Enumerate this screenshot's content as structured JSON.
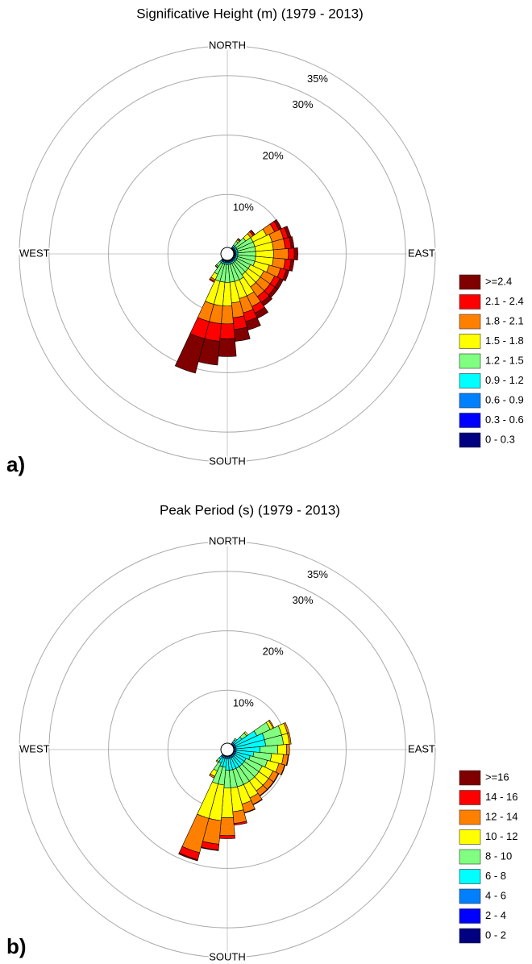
{
  "chart_data": [
    {
      "type": "rose",
      "title": "Significative Height  (m) (1979 - 2013)",
      "panel_label": "a)",
      "compass_labels": [
        "NORTH",
        "EAST",
        "SOUTH",
        "WEST"
      ],
      "directions": [
        40,
        50,
        60,
        70,
        80,
        90,
        100,
        110,
        120,
        130,
        140,
        150,
        160,
        170,
        180,
        190,
        200,
        210,
        220
      ],
      "rlim": [
        0,
        35
      ],
      "rticks": [
        {
          "value": 10,
          "label": "10%"
        },
        {
          "value": 20,
          "label": "20%"
        },
        {
          "value": 30,
          "label": "30%"
        },
        {
          "value": 35,
          "label": "35%"
        }
      ],
      "series": [
        {
          "name": "0 - 0.3",
          "color": "#000080",
          "values": [
            0.1,
            0.1,
            0.1,
            0.1,
            0.1,
            0.1,
            0.1,
            0.1,
            0.1,
            0.1,
            0.1,
            0.1,
            0.1,
            0.1,
            0.1,
            0.1,
            0.1,
            0.1,
            0.1
          ]
        },
        {
          "name": "0.3 - 0.6",
          "color": "#0000ff",
          "values": [
            0.1,
            0.1,
            0.1,
            0.1,
            0.1,
            0.1,
            0.1,
            0.1,
            0.1,
            0.1,
            0.1,
            0.1,
            0.1,
            0.1,
            0.1,
            0.1,
            0.1,
            0.1,
            0.1
          ]
        },
        {
          "name": "0.6 - 0.9",
          "color": "#0080ff",
          "values": [
            0.2,
            0.2,
            0.2,
            0.2,
            0.2,
            0.2,
            0.2,
            0.2,
            0.2,
            0.2,
            0.2,
            0.2,
            0.2,
            0.2,
            0.2,
            0.2,
            0.2,
            0.2,
            0.2
          ]
        },
        {
          "name": "0.9 - 1.2",
          "color": "#00ffff",
          "values": [
            0.3,
            0.3,
            0.3,
            0.3,
            0.3,
            0.3,
            0.3,
            0.3,
            0.3,
            0.3,
            0.3,
            0.3,
            0.3,
            0.3,
            0.3,
            0.3,
            0.3,
            0.3,
            0.3
          ]
        },
        {
          "name": "1.2 - 1.5",
          "color": "#80ff80",
          "values": [
            0.8,
            2,
            3,
            3,
            3,
            3,
            3,
            3,
            2.5,
            2.5,
            2.5,
            3,
            3,
            3,
            3,
            3,
            3,
            2,
            0.8
          ]
        },
        {
          "name": "1.5 - 1.8",
          "color": "#ffff00",
          "values": [
            0.3,
            1,
            2.5,
            3,
            3,
            3,
            3,
            2.5,
            2.5,
            2.5,
            2.5,
            3,
            3,
            3.5,
            4,
            4,
            4,
            1,
            0.2
          ]
        },
        {
          "name": "1.8 - 2.1",
          "color": "#ff8000",
          "values": [
            0.2,
            0.5,
            1.5,
            2,
            2,
            2.5,
            2,
            2,
            2,
            2,
            2,
            2,
            2.5,
            2.5,
            3,
            3,
            3,
            0.3,
            0.1
          ]
        },
        {
          "name": "2.1 - 2.4",
          "color": "#ff0000",
          "values": [
            0.1,
            0.3,
            0.8,
            0.8,
            1,
            1,
            1,
            1,
            1,
            1,
            1.2,
            1.2,
            1.5,
            2,
            2.5,
            3,
            3,
            0.2,
            0
          ]
        },
        {
          "name": ">=2.4",
          "color": "#800000",
          "values": [
            0,
            0.1,
            0.5,
            0.5,
            0.5,
            0.6,
            0.5,
            0.5,
            0.6,
            0.6,
            0.7,
            1,
            1.5,
            2,
            3,
            4,
            6,
            0,
            0
          ]
        }
      ]
    },
    {
      "type": "rose",
      "title": "Peak Period (s) (1979 - 2013)",
      "panel_label": "b)",
      "compass_labels": [
        "NORTH",
        "EAST",
        "SOUTH",
        "WEST"
      ],
      "directions": [
        40,
        50,
        60,
        70,
        80,
        90,
        100,
        110,
        120,
        130,
        140,
        150,
        160,
        170,
        180,
        190,
        200,
        210,
        220
      ],
      "rlim": [
        0,
        35
      ],
      "rticks": [
        {
          "value": 10,
          "label": "10%"
        },
        {
          "value": 20,
          "label": "20%"
        },
        {
          "value": 30,
          "label": "30%"
        },
        {
          "value": 35,
          "label": "35%"
        }
      ],
      "series": [
        {
          "name": "0 - 2",
          "color": "#000080",
          "values": [
            0,
            0,
            0,
            0,
            0,
            0,
            0,
            0,
            0,
            0,
            0,
            0,
            0,
            0,
            0,
            0,
            0,
            0,
            0
          ]
        },
        {
          "name": "2 - 4",
          "color": "#0000ff",
          "values": [
            0.1,
            0.1,
            0.1,
            0.1,
            0.1,
            0.1,
            0.1,
            0.1,
            0.1,
            0.1,
            0.1,
            0.1,
            0.1,
            0.1,
            0.1,
            0.1,
            0.1,
            0.1,
            0.1
          ]
        },
        {
          "name": "4 - 6",
          "color": "#0080ff",
          "values": [
            0.3,
            0.3,
            0.3,
            0.3,
            0.3,
            0.3,
            0.3,
            0.3,
            0.3,
            0.3,
            0.3,
            0.3,
            0.3,
            0.3,
            0.3,
            0.3,
            0.3,
            0.3,
            0.3
          ]
        },
        {
          "name": "6 - 8",
          "color": "#00ffff",
          "values": [
            0.5,
            1.5,
            4,
            5,
            5,
            4,
            3,
            2.5,
            2,
            2,
            2,
            2,
            2,
            2,
            2,
            1.5,
            1.5,
            1,
            0.5
          ]
        },
        {
          "name": "8 - 10",
          "color": "#80ff80",
          "values": [
            0.3,
            1,
            2.5,
            3,
            3,
            3,
            3,
            3,
            3,
            3,
            3,
            3,
            3,
            3,
            3,
            3,
            3,
            1.5,
            0.5
          ]
        },
        {
          "name": "10 - 12",
          "color": "#ffff00",
          "values": [
            0,
            0.3,
            0.5,
            1,
            1,
            1.5,
            2,
            2,
            2,
            2,
            2,
            2.5,
            3,
            4,
            5,
            6,
            6,
            1,
            0.2
          ]
        },
        {
          "name": "12 - 14",
          "color": "#ff8000",
          "values": [
            0,
            0,
            0.2,
            0.3,
            0.3,
            0.5,
            0.8,
            1,
            1,
            1,
            1,
            1.2,
            1.5,
            2,
            3,
            4,
            6,
            0.3,
            0
          ]
        },
        {
          "name": "14 - 16",
          "color": "#ff0000",
          "values": [
            0,
            0,
            0,
            0,
            0,
            0,
            0.1,
            0.1,
            0.1,
            0.1,
            0.1,
            0.1,
            0.1,
            0.3,
            0.5,
            1,
            1.2,
            0,
            0
          ]
        },
        {
          "name": ">=16",
          "color": "#800000",
          "values": [
            0,
            0,
            0,
            0,
            0,
            0,
            0,
            0,
            0,
            0,
            0,
            0,
            0,
            0,
            0,
            0.1,
            0.2,
            0,
            0
          ]
        }
      ]
    }
  ]
}
